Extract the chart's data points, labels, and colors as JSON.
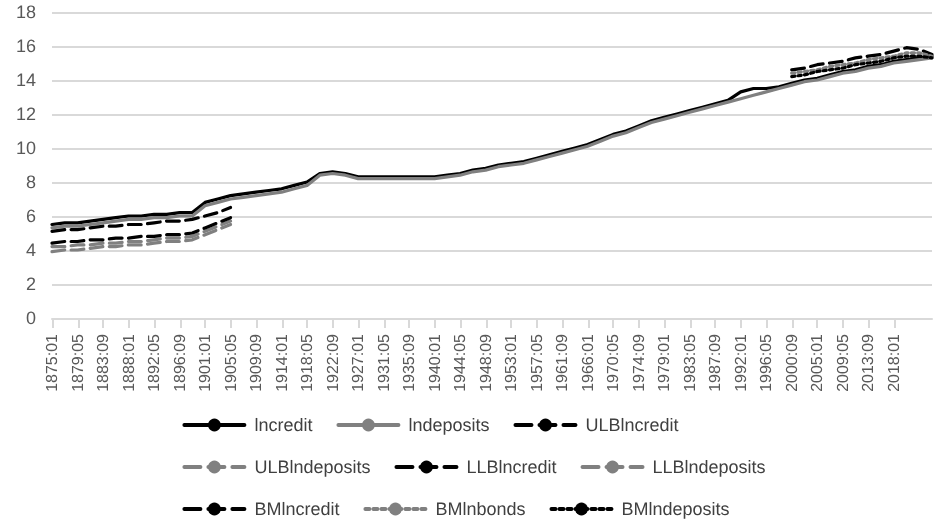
{
  "chart_data": {
    "type": "line",
    "categories": [
      "1875:01",
      null,
      "1879:05",
      null,
      "1883:09",
      null,
      "1888:01",
      null,
      "1892:05",
      null,
      "1896:09",
      null,
      "1901:01",
      null,
      "1905:05",
      null,
      "1909:09",
      null,
      "1914:01",
      null,
      "1918:05",
      null,
      "1922:09",
      null,
      "1927:01",
      null,
      "1931:05",
      null,
      "1935:09",
      null,
      "1940:01",
      null,
      "1944:05",
      null,
      "1948:09",
      null,
      "1953:01",
      null,
      "1957:05",
      null,
      "1961:09",
      null,
      "1966:01",
      null,
      "1970:05",
      null,
      "1974:09",
      null,
      "1979:01",
      null,
      "1983:05",
      null,
      "1987:09",
      null,
      "1992:01",
      null,
      "1996:05",
      null,
      "2000:09",
      null,
      "2005:01",
      null,
      "2009:05",
      null,
      "2013:09",
      null,
      "2018:01",
      null,
      null,
      null
    ],
    "ylim": [
      0,
      18
    ],
    "yticks": [
      0,
      2,
      4,
      6,
      8,
      10,
      12,
      14,
      16,
      18
    ],
    "grid": "y",
    "legend": "bottom",
    "marker": "none",
    "series": [
      {
        "name": "lncredit",
        "color": "#000000",
        "line_style": "solid",
        "values": [
          5.5,
          5.6,
          5.6,
          5.7,
          5.8,
          5.9,
          6.0,
          6.0,
          6.1,
          6.1,
          6.2,
          6.2,
          6.8,
          7.0,
          7.2,
          7.3,
          7.4,
          7.5,
          7.6,
          7.8,
          8.0,
          8.5,
          8.6,
          8.5,
          8.3,
          8.3,
          8.3,
          8.3,
          8.3,
          8.3,
          8.3,
          8.4,
          8.5,
          8.7,
          8.8,
          9.0,
          9.1,
          9.2,
          9.4,
          9.6,
          9.8,
          10.0,
          10.2,
          10.5,
          10.8,
          11.0,
          11.3,
          11.6,
          11.8,
          12.0,
          12.2,
          12.4,
          12.6,
          12.8,
          13.3,
          13.5,
          13.5,
          13.6,
          13.8,
          14.0,
          14.1,
          14.3,
          14.5,
          14.6,
          14.8,
          14.9,
          15.1,
          15.2,
          15.3,
          15.4
        ]
      },
      {
        "name": "lndeposits",
        "color": "#808080",
        "line_style": "solid",
        "values": [
          5.3,
          5.4,
          5.4,
          5.5,
          5.6,
          5.7,
          5.8,
          5.8,
          5.9,
          5.9,
          6.0,
          6.0,
          6.6,
          6.8,
          7.0,
          7.1,
          7.2,
          7.3,
          7.4,
          7.6,
          7.8,
          8.4,
          8.5,
          8.4,
          8.2,
          8.2,
          8.2,
          8.2,
          8.2,
          8.2,
          8.2,
          8.3,
          8.4,
          8.6,
          8.7,
          8.9,
          9.0,
          9.1,
          9.3,
          9.5,
          9.7,
          9.9,
          10.1,
          10.4,
          10.7,
          10.9,
          11.2,
          11.5,
          11.7,
          11.9,
          12.1,
          12.3,
          12.5,
          12.7,
          12.9,
          13.1,
          13.3,
          13.5,
          13.7,
          13.9,
          14.0,
          14.2,
          14.4,
          14.5,
          14.7,
          14.8,
          15.0,
          15.1,
          15.2,
          15.3
        ]
      },
      {
        "name": "ULBlncredit",
        "color": "#000000",
        "line_style": "dashed",
        "values": [
          5.1,
          5.2,
          5.2,
          5.3,
          5.4,
          5.4,
          5.5,
          5.5,
          5.6,
          5.7,
          5.7,
          5.8,
          6.0,
          6.2,
          6.5,
          null,
          null,
          null,
          null,
          null,
          null,
          null,
          null,
          null,
          null,
          null,
          null,
          null,
          null,
          null,
          null,
          null,
          null,
          null,
          null,
          null,
          null,
          null,
          null,
          null,
          null,
          null,
          null,
          null,
          null,
          null,
          null,
          null,
          null,
          null,
          null,
          null,
          null,
          null,
          null,
          null,
          null,
          null,
          null,
          null,
          null,
          null,
          null,
          null,
          null,
          null,
          null,
          null,
          null,
          null
        ]
      },
      {
        "name": "ULBlndeposits",
        "color": "#808080",
        "line_style": "dashed",
        "values": [
          4.2,
          4.2,
          4.3,
          4.3,
          4.4,
          4.4,
          4.5,
          4.5,
          4.6,
          4.7,
          4.7,
          4.8,
          5.1,
          5.4,
          5.7,
          null,
          null,
          null,
          null,
          null,
          null,
          null,
          null,
          null,
          null,
          null,
          null,
          null,
          null,
          null,
          null,
          null,
          null,
          null,
          null,
          null,
          null,
          null,
          null,
          null,
          null,
          null,
          null,
          null,
          null,
          null,
          null,
          null,
          null,
          null,
          null,
          null,
          null,
          null,
          null,
          null,
          null,
          null,
          null,
          null,
          null,
          null,
          null,
          null,
          null,
          null,
          null,
          null,
          null,
          null
        ]
      },
      {
        "name": "LLBlncredit",
        "color": "#000000",
        "line_style": "dashed",
        "values": [
          4.4,
          4.5,
          4.5,
          4.6,
          4.6,
          4.7,
          4.7,
          4.8,
          4.8,
          4.9,
          4.9,
          5.0,
          5.3,
          5.6,
          5.9,
          null,
          null,
          null,
          null,
          null,
          null,
          null,
          null,
          null,
          null,
          null,
          null,
          null,
          null,
          null,
          null,
          null,
          null,
          null,
          null,
          null,
          null,
          null,
          null,
          null,
          null,
          null,
          null,
          null,
          null,
          null,
          null,
          null,
          null,
          null,
          null,
          null,
          null,
          null,
          null,
          null,
          null,
          null,
          null,
          null,
          null,
          null,
          null,
          null,
          null,
          null,
          null,
          null,
          null,
          null
        ]
      },
      {
        "name": "LLBlndeposits",
        "color": "#808080",
        "line_style": "dashed",
        "values": [
          3.9,
          4.0,
          4.0,
          4.1,
          4.2,
          4.2,
          4.3,
          4.3,
          4.4,
          4.5,
          4.5,
          4.6,
          4.9,
          5.2,
          5.5,
          null,
          null,
          null,
          null,
          null,
          null,
          null,
          null,
          null,
          null,
          null,
          null,
          null,
          null,
          null,
          null,
          null,
          null,
          null,
          null,
          null,
          null,
          null,
          null,
          null,
          null,
          null,
          null,
          null,
          null,
          null,
          null,
          null,
          null,
          null,
          null,
          null,
          null,
          null,
          null,
          null,
          null,
          null,
          null,
          null,
          null,
          null,
          null,
          null,
          null,
          null,
          null,
          null,
          null,
          null
        ]
      },
      {
        "name": "BMlncredit",
        "color": "#000000",
        "line_style": "dashed",
        "values": [
          null,
          null,
          null,
          null,
          null,
          null,
          null,
          null,
          null,
          null,
          null,
          null,
          null,
          null,
          null,
          null,
          null,
          null,
          null,
          null,
          null,
          null,
          null,
          null,
          null,
          null,
          null,
          null,
          null,
          null,
          null,
          null,
          null,
          null,
          null,
          null,
          null,
          null,
          null,
          null,
          null,
          null,
          null,
          null,
          null,
          null,
          null,
          null,
          null,
          null,
          null,
          null,
          null,
          null,
          null,
          null,
          null,
          null,
          14.6,
          14.7,
          14.9,
          15.0,
          15.1,
          15.3,
          15.4,
          15.5,
          15.7,
          15.9,
          15.8,
          15.5
        ]
      },
      {
        "name": "BMlnbonds",
        "color": "#808080",
        "line_style": "dotted",
        "values": [
          null,
          null,
          null,
          null,
          null,
          null,
          null,
          null,
          null,
          null,
          null,
          null,
          null,
          null,
          null,
          null,
          null,
          null,
          null,
          null,
          null,
          null,
          null,
          null,
          null,
          null,
          null,
          null,
          null,
          null,
          null,
          null,
          null,
          null,
          null,
          null,
          null,
          null,
          null,
          null,
          null,
          null,
          null,
          null,
          null,
          null,
          null,
          null,
          null,
          null,
          null,
          null,
          null,
          null,
          null,
          null,
          null,
          null,
          14.4,
          14.5,
          14.6,
          14.8,
          14.9,
          15.0,
          15.2,
          15.3,
          15.4,
          15.6,
          15.6,
          15.4
        ]
      },
      {
        "name": "BMlndeposits",
        "color": "#000000",
        "line_style": "dotted",
        "values": [
          null,
          null,
          null,
          null,
          null,
          null,
          null,
          null,
          null,
          null,
          null,
          null,
          null,
          null,
          null,
          null,
          null,
          null,
          null,
          null,
          null,
          null,
          null,
          null,
          null,
          null,
          null,
          null,
          null,
          null,
          null,
          null,
          null,
          null,
          null,
          null,
          null,
          null,
          null,
          null,
          null,
          null,
          null,
          null,
          null,
          null,
          null,
          null,
          null,
          null,
          null,
          null,
          null,
          null,
          null,
          null,
          null,
          null,
          14.2,
          14.3,
          14.5,
          14.6,
          14.7,
          14.9,
          15.0,
          15.1,
          15.3,
          15.4,
          15.4,
          15.3
        ]
      }
    ]
  }
}
